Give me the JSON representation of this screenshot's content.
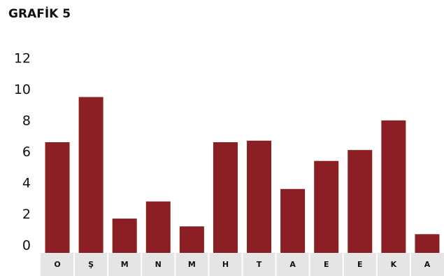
{
  "chart_data": {
    "type": "bar",
    "title": "GRAFİK 5",
    "categories": [
      "O",
      "Ş",
      "M",
      "N",
      "M",
      "H",
      "T",
      "A",
      "E",
      "E",
      "K",
      "A"
    ],
    "values": [
      7.1,
      10.0,
      2.2,
      3.3,
      1.7,
      7.1,
      7.2,
      4.1,
      5.9,
      6.6,
      8.5,
      1.2
    ],
    "yticks": [
      0,
      2,
      4,
      6,
      8,
      10,
      12
    ],
    "ylim": [
      0,
      12
    ],
    "xlabel": "",
    "ylabel": "",
    "grid": false,
    "colors": {
      "bar": "#8b1f23",
      "category_band": "#e5e5e5"
    }
  }
}
